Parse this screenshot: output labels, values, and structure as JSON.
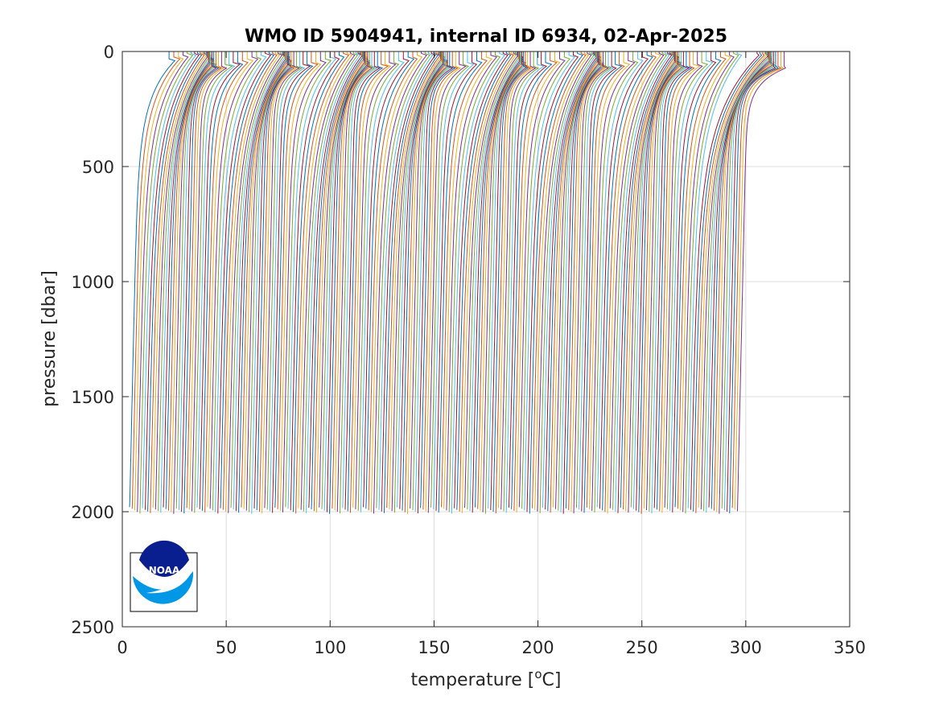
{
  "chart_data": {
    "type": "line",
    "title": "WMO ID 5904941, internal ID 6934, 02-Apr-2025",
    "xlabel": "temperature [",
    "xlabel_unit_sup": "o",
    "xlabel_unit": "C]",
    "ylabel": "pressure [dbar]",
    "xlim": [
      0,
      350
    ],
    "ylim": [
      2500,
      0
    ],
    "y_reversed": true,
    "grid": true,
    "xticks": [
      0,
      50,
      100,
      150,
      200,
      250,
      300,
      350
    ],
    "yticks": [
      0,
      500,
      1000,
      1500,
      2000,
      2500
    ],
    "xtick_labels": [
      "0",
      "50",
      "100",
      "150",
      "200",
      "250",
      "300",
      "350"
    ],
    "ytick_labels": [
      "0",
      "500",
      "1000",
      "1500",
      "2000",
      "2500"
    ],
    "profile_count": 235,
    "profile_x_offset_step": 1.25,
    "profile_max_pressure": 2000,
    "first_profile_deep_temperature": 3.5,
    "last_profile_deep_temperature": 296,
    "colors": [
      "#0072BD",
      "#D95319",
      "#EDB120",
      "#7E2F8E",
      "#77AC30",
      "#4DBEEE",
      "#A2142F"
    ]
  },
  "logo": {
    "text": "NOAA",
    "icon": "noaa-logo-icon",
    "colors": {
      "navy": "#0a1f8f",
      "sky": "#0097e6",
      "white": "#ffffff"
    }
  }
}
